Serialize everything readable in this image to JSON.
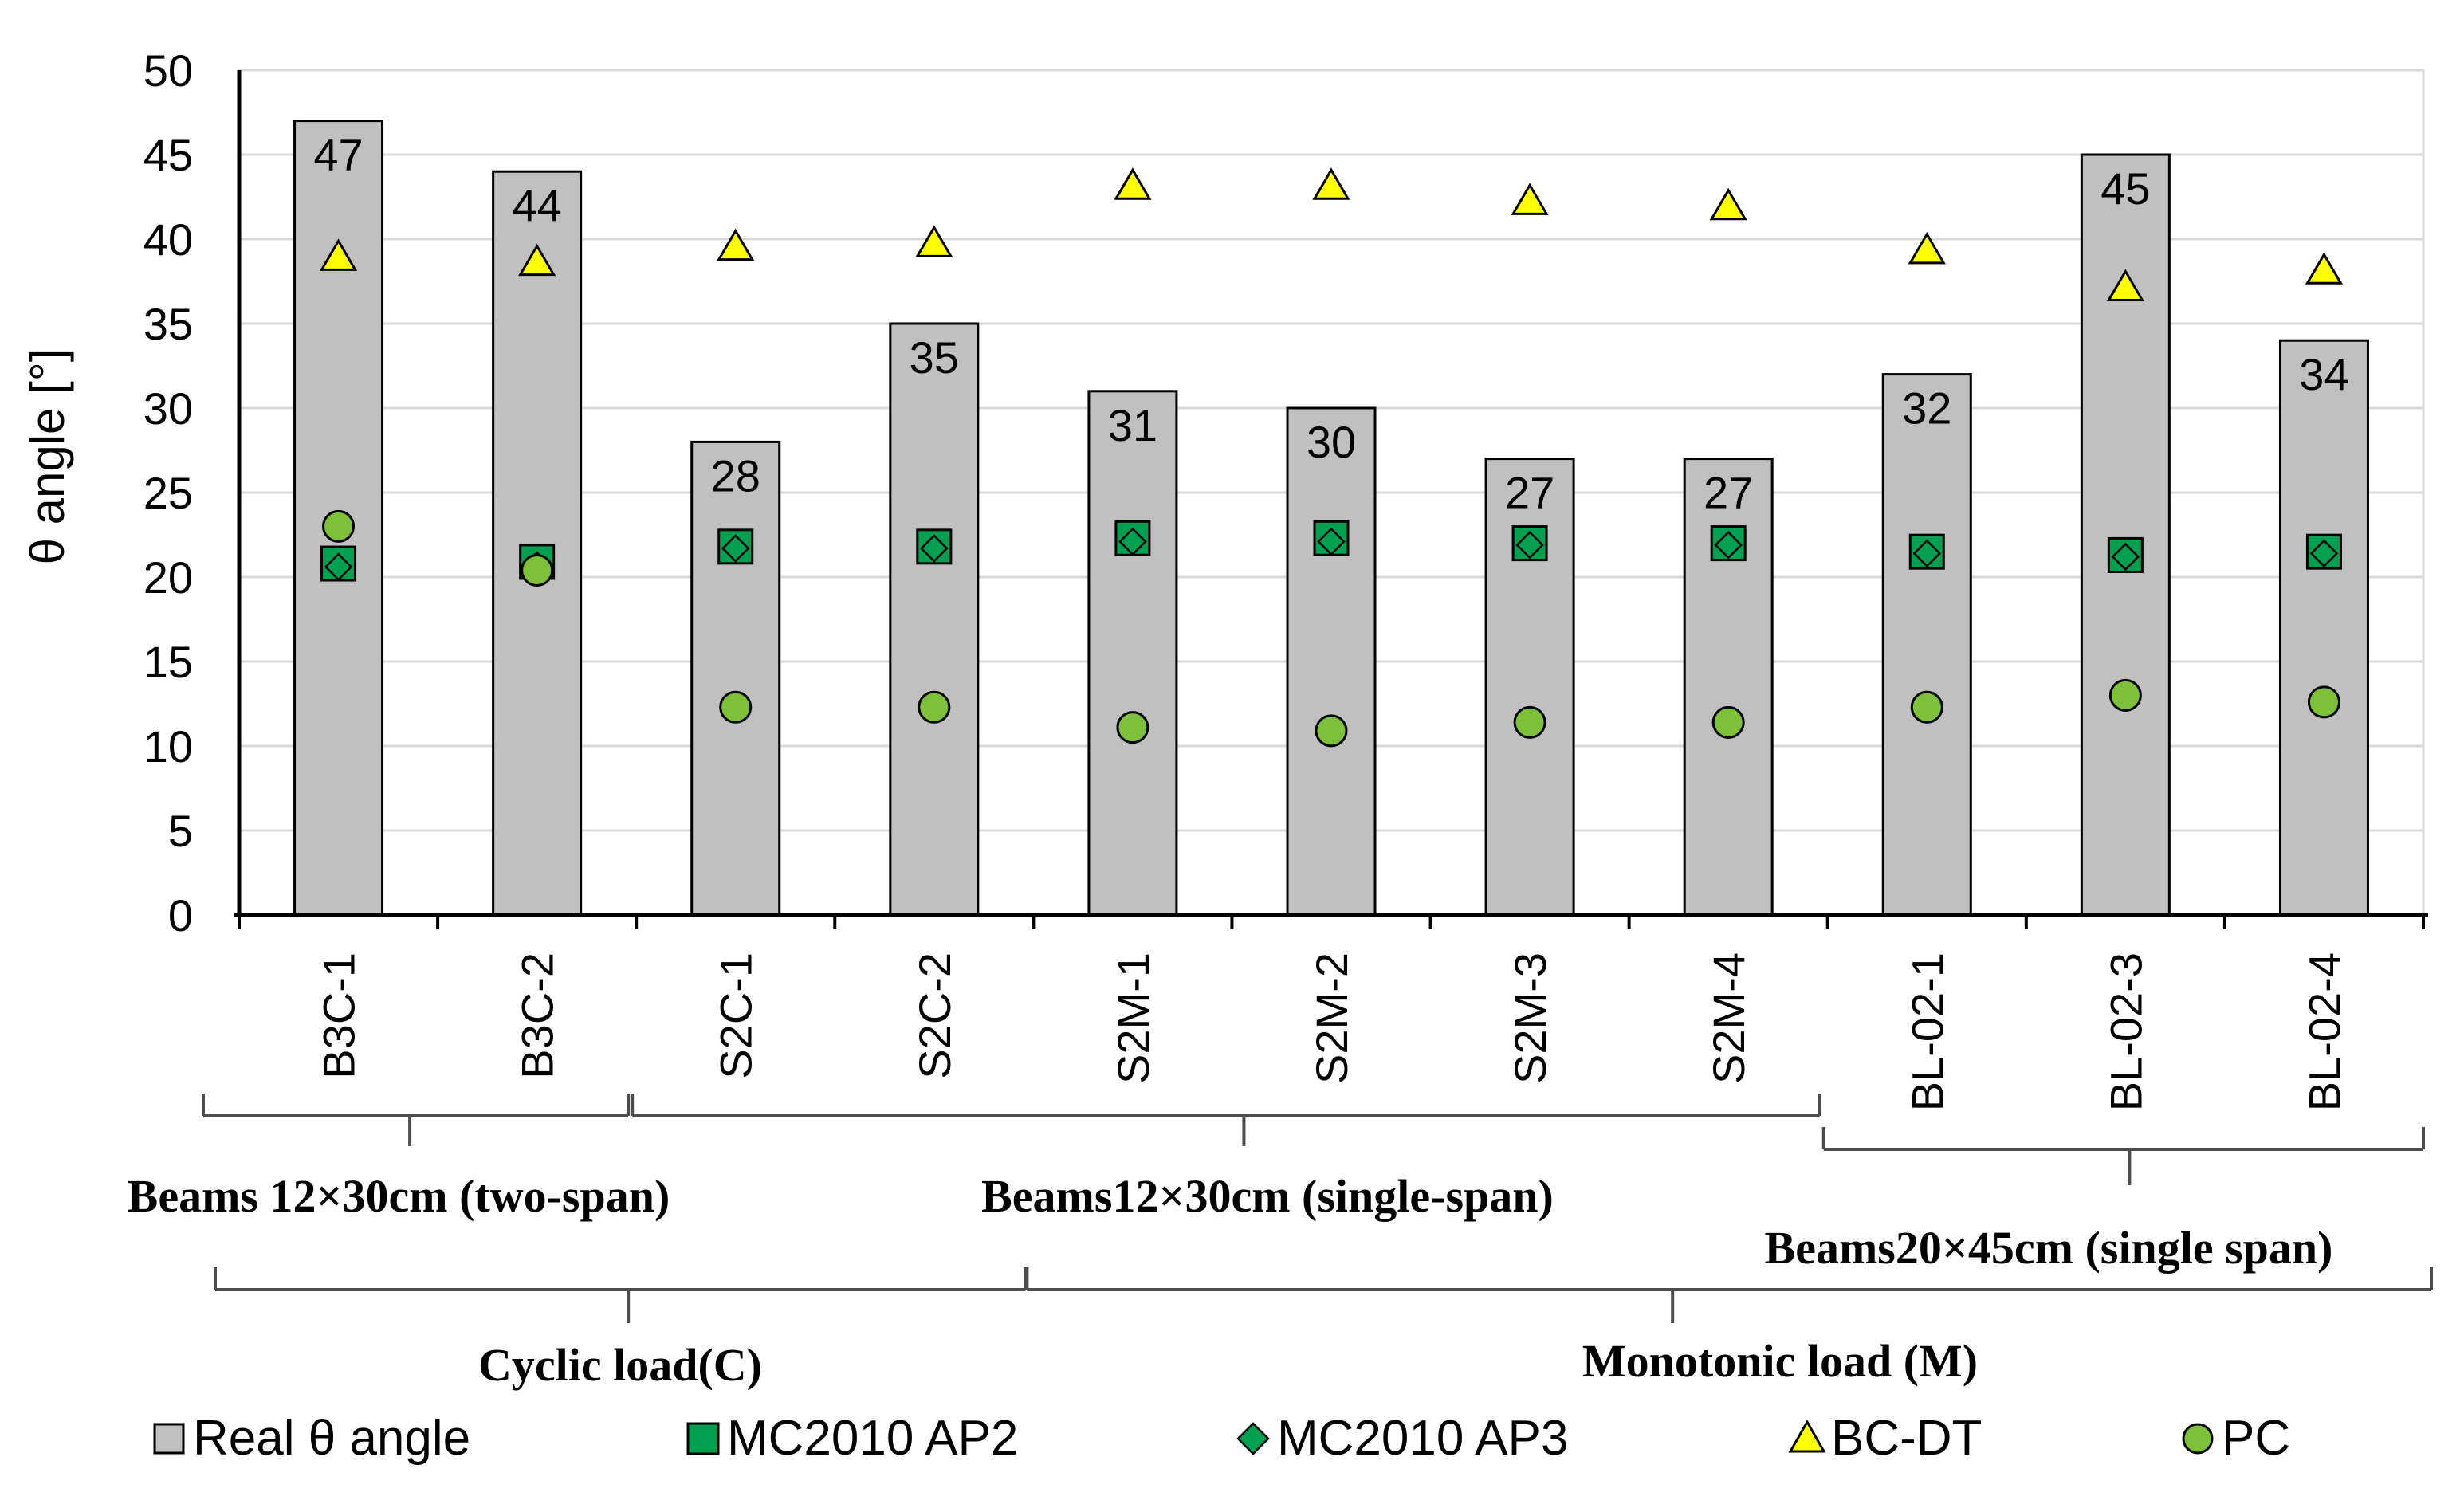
{
  "colors": {
    "bar_fill": "#c0c0c0",
    "ap2": "#00a050",
    "ap3": "#00a050",
    "bcdt": "#ffff00",
    "pc": "#7dc13a",
    "grid": "#d9d9d9",
    "axis": "#000000",
    "bracket": "#4d4d4d"
  },
  "chart_data": {
    "type": "bar",
    "title": "",
    "xlabel": "",
    "ylabel": "θ angle [°]",
    "ylim": [
      0,
      50
    ],
    "ytick_step": 5,
    "grid": true,
    "categories": [
      "B3C-1",
      "B3C-2",
      "S2C-1",
      "S2C-2",
      "S2M-1",
      "S2M-2",
      "S2M-3",
      "S2M-4",
      "BL-02-1",
      "BL-02-3",
      "BL-02-4"
    ],
    "series": [
      {
        "name": "Real θ angle",
        "kind": "bar",
        "values": [
          47,
          44,
          28,
          35,
          31,
          30,
          27,
          27,
          32,
          45,
          34
        ],
        "data_labels": [
          "47",
          "44",
          "28",
          "35",
          "31",
          "30",
          "27",
          "27",
          "32",
          "45",
          "34"
        ]
      },
      {
        "name": "MC2010 AP2",
        "kind": "square",
        "values": [
          20.8,
          20.9,
          21.8,
          21.8,
          22.3,
          22.3,
          22.0,
          22.0,
          21.5,
          21.3,
          21.5
        ]
      },
      {
        "name": "MC2010 AP3",
        "kind": "diamond",
        "values": [
          20.6,
          20.7,
          21.7,
          21.7,
          22.1,
          22.1,
          21.9,
          21.9,
          21.4,
          21.2,
          21.4
        ]
      },
      {
        "name": "BC-DT",
        "kind": "triangle",
        "values": [
          38.9,
          38.6,
          39.5,
          39.7,
          43.1,
          43.1,
          42.2,
          41.9,
          39.3,
          37.1,
          38.1
        ]
      },
      {
        "name": "PC",
        "kind": "circle",
        "values": [
          23.0,
          20.4,
          12.3,
          12.3,
          11.1,
          10.9,
          11.4,
          11.4,
          12.3,
          13.0,
          12.6
        ]
      }
    ],
    "groups_level1": [
      {
        "label": "Beams 12×30cm (two-span)",
        "categories": [
          "B3C-1",
          "B3C-2"
        ]
      },
      {
        "label": "Beams12×30cm (single-span)",
        "categories": [
          "S2C-1",
          "S2C-2",
          "S2M-1",
          "S2M-2",
          "S2M-3",
          "S2M-4"
        ]
      },
      {
        "label": "Beams20×45cm (single span)",
        "categories": [
          "BL-02-1",
          "BL-02-3",
          "BL-02-4"
        ]
      }
    ],
    "groups_level2": [
      {
        "label": "Cyclic load(C)",
        "categories": [
          "B3C-1",
          "B3C-2",
          "S2C-1",
          "S2C-2"
        ]
      },
      {
        "label": "Monotonic load (M)",
        "categories": [
          "S2M-1",
          "S2M-2",
          "S2M-3",
          "S2M-4",
          "BL-02-1",
          "BL-02-3",
          "BL-02-4"
        ]
      }
    ],
    "legend_position": "bottom"
  }
}
